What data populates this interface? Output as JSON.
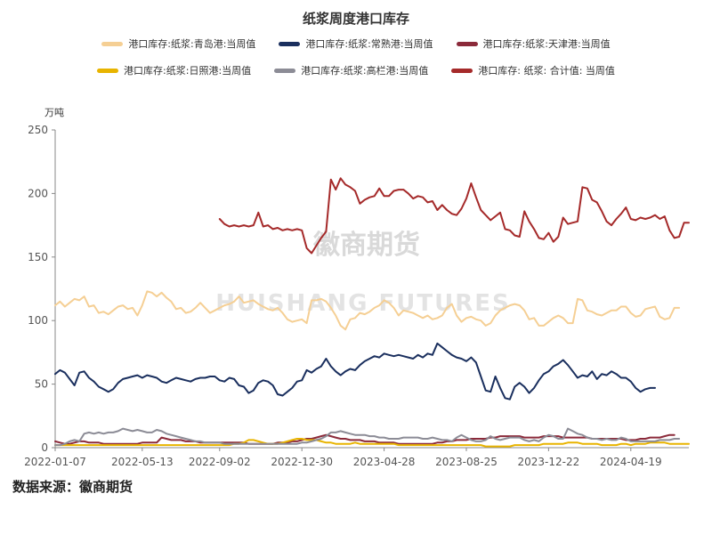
{
  "chart_data": {
    "type": "line",
    "title": "纸浆周度港口库存",
    "ylabel": "万吨",
    "ylim": [
      0,
      250
    ],
    "yticks": [
      0,
      50,
      100,
      150,
      200,
      250
    ],
    "xlim": [
      "2022-01-07",
      "2024-07-12"
    ],
    "xticks": [
      "2022-01-07",
      "2022-05-13",
      "2022-09-02",
      "2022-12-30",
      "2023-04-28",
      "2023-08-25",
      "2023-12-22",
      "2024-04-19"
    ],
    "watermark_cn": "徽商期货",
    "watermark_en": "HUISHANG FUTURES",
    "series": [
      {
        "name": "港口库存:纸浆:青岛港:当周值",
        "color": "#f5cf94",
        "values": [
          112,
          115,
          111,
          114,
          117,
          116,
          119,
          111,
          112,
          106,
          107,
          105,
          108,
          111,
          112,
          109,
          110,
          104,
          112,
          123,
          122,
          119,
          122,
          118,
          115,
          109,
          110,
          106,
          107,
          110,
          114,
          110,
          106,
          108,
          110,
          112,
          113,
          115,
          119,
          114,
          115,
          116,
          113,
          111,
          109,
          108,
          110,
          106,
          101,
          99,
          100,
          101,
          98,
          116,
          116,
          117,
          115,
          110,
          104,
          96,
          93,
          101,
          102,
          106,
          105,
          107,
          110,
          112,
          116,
          114,
          110,
          104,
          108,
          107,
          106,
          104,
          102,
          104,
          101,
          102,
          104,
          110,
          113,
          104,
          99,
          102,
          103,
          101,
          100,
          96,
          98,
          104,
          108,
          110,
          112,
          113,
          112,
          108,
          101,
          102,
          96,
          96,
          99,
          102,
          104,
          102,
          98,
          98,
          117,
          116,
          108,
          107,
          105,
          104,
          106,
          108,
          108,
          111,
          111,
          106,
          103,
          104,
          109,
          110,
          111,
          103,
          101,
          102,
          110,
          110
        ]
      },
      {
        "name": "港口库存:纸浆:常熟港:当周值",
        "color": "#1a2f5e",
        "values": [
          58,
          61,
          59,
          54,
          49,
          59,
          60,
          55,
          52,
          48,
          46,
          44,
          46,
          51,
          54,
          55,
          56,
          57,
          55,
          57,
          56,
          55,
          52,
          51,
          53,
          55,
          54,
          53,
          52,
          54,
          55,
          55,
          56,
          56,
          53,
          52,
          55,
          54,
          49,
          48,
          43,
          45,
          51,
          53,
          52,
          49,
          42,
          41,
          44,
          47,
          52,
          53,
          61,
          59,
          62,
          64,
          70,
          64,
          60,
          57,
          60,
          62,
          61,
          65,
          68,
          70,
          72,
          71,
          74,
          73,
          72,
          73,
          72,
          71,
          70,
          73,
          71,
          74,
          73,
          82,
          79,
          76,
          73,
          71,
          70,
          68,
          71,
          67,
          56,
          45,
          44,
          56,
          47,
          39,
          38,
          48,
          51,
          48,
          43,
          47,
          53,
          58,
          60,
          64,
          66,
          69,
          65,
          60,
          55,
          57,
          56,
          60,
          54,
          58,
          57,
          60,
          58,
          55,
          55,
          52,
          47,
          44,
          46,
          47,
          47
        ]
      },
      {
        "name": "港口库存:纸浆:天津港:当周值",
        "color": "#8b2a3a",
        "values": [
          5,
          4,
          3,
          3,
          4,
          5,
          5,
          4,
          4,
          4,
          3,
          3,
          3,
          3,
          3,
          3,
          3,
          3,
          4,
          4,
          4,
          4,
          8,
          7,
          6,
          6,
          6,
          5,
          5,
          5,
          4,
          4,
          4,
          4,
          4,
          4,
          4,
          4,
          4,
          4,
          3,
          3,
          3,
          3,
          3,
          3,
          4,
          4,
          4,
          5,
          5,
          6,
          7,
          7,
          8,
          9,
          10,
          9,
          8,
          7,
          7,
          6,
          6,
          6,
          5,
          5,
          5,
          4,
          4,
          4,
          4,
          3,
          3,
          3,
          3,
          3,
          3,
          3,
          3,
          4,
          4,
          5,
          5,
          6,
          6,
          6,
          7,
          7,
          7,
          7,
          8,
          8,
          9,
          9,
          9,
          9,
          9,
          8,
          8,
          8,
          8,
          9,
          9,
          9,
          9,
          8,
          8,
          8,
          8,
          8,
          8,
          7,
          7,
          7,
          7,
          7,
          7,
          7,
          6,
          6,
          6,
          7,
          7,
          8,
          8,
          8,
          9,
          10,
          10
        ]
      },
      {
        "name": "港口库存:纸浆:日照港:当周值",
        "color": "#e8b400",
        "values": [
          2,
          2,
          2,
          2,
          2,
          2,
          2,
          2,
          2,
          2,
          2,
          2,
          2,
          2,
          2,
          2,
          2,
          2,
          2,
          2,
          2,
          2,
          2,
          2,
          2,
          2,
          2,
          2,
          2,
          2,
          2,
          2,
          2,
          2,
          2,
          2,
          2,
          3,
          3,
          4,
          6,
          6,
          5,
          4,
          3,
          3,
          3,
          4,
          5,
          6,
          7,
          7,
          6,
          6,
          6,
          5,
          4,
          4,
          3,
          3,
          3,
          3,
          4,
          3,
          3,
          3,
          3,
          3,
          3,
          3,
          3,
          2,
          2,
          2,
          2,
          2,
          2,
          2,
          2,
          2,
          2,
          2,
          2,
          2,
          2,
          2,
          2,
          2,
          2,
          1,
          1,
          1,
          1,
          1,
          1,
          2,
          2,
          2,
          2,
          2,
          2,
          3,
          3,
          3,
          3,
          3,
          4,
          4,
          4,
          3,
          3,
          3,
          3,
          2,
          2,
          2,
          2,
          3,
          3,
          2,
          3,
          3,
          3,
          4,
          4,
          4,
          4,
          3,
          3,
          3,
          3,
          3
        ]
      },
      {
        "name": "港口库存:纸浆:高栏港:当周值",
        "color": "#8c8c96",
        "values": [
          2,
          2,
          3,
          5,
          6,
          5,
          11,
          12,
          11,
          12,
          11,
          12,
          12,
          13,
          15,
          14,
          13,
          14,
          13,
          12,
          12,
          14,
          13,
          11,
          10,
          9,
          8,
          7,
          6,
          5,
          5,
          4,
          4,
          4,
          4,
          3,
          3,
          3,
          3,
          3,
          3,
          3,
          3,
          3,
          3,
          3,
          3,
          3,
          3,
          3,
          3,
          4,
          4,
          5,
          6,
          7,
          9,
          12,
          12,
          13,
          12,
          11,
          10,
          10,
          10,
          9,
          9,
          8,
          8,
          7,
          7,
          7,
          8,
          8,
          8,
          8,
          7,
          7,
          8,
          7,
          6,
          6,
          5,
          8,
          10,
          8,
          6,
          5,
          5,
          6,
          9,
          7,
          6,
          7,
          8,
          8,
          8,
          6,
          5,
          6,
          5,
          8,
          10,
          9,
          7,
          7,
          15,
          13,
          11,
          10,
          8,
          7,
          7,
          6,
          7,
          6,
          6,
          8,
          7,
          5,
          5,
          5,
          5,
          5,
          5,
          6,
          6,
          6,
          7,
          7
        ]
      },
      {
        "name": "港口库存:纸浆:合计值:当周值",
        "color": "#a52a2a",
        "start": "2022-09-02",
        "values": [
          180,
          176,
          174,
          175,
          174,
          175,
          174,
          175,
          185,
          174,
          175,
          172,
          173,
          171,
          172,
          171,
          172,
          171,
          157,
          153,
          159,
          165,
          170,
          211,
          203,
          212,
          207,
          205,
          202,
          192,
          195,
          197,
          198,
          204,
          198,
          198,
          202,
          203,
          203,
          200,
          196,
          198,
          197,
          193,
          194,
          187,
          191,
          187,
          184,
          183,
          188,
          196,
          208,
          197,
          187,
          183,
          179,
          182,
          185,
          172,
          171,
          167,
          166,
          186,
          178,
          172,
          165,
          164,
          169,
          162,
          166,
          181,
          176,
          177,
          178,
          205,
          204,
          195,
          193,
          186,
          178,
          175,
          180,
          184,
          189,
          180,
          179,
          181,
          180,
          181,
          183,
          180,
          182,
          171,
          165,
          166,
          177,
          177
        ]
      }
    ]
  },
  "legend": {
    "row1": [
      "港口库存:纸浆:青岛港:当周值",
      "港口库存:纸浆:常熟港:当周值",
      "港口库存:纸浆:天津港:当周值"
    ],
    "row2": [
      "港口库存:纸浆:日照港:当周值",
      "港口库存:纸浆:高栏港:当周值",
      "港口库存: 纸浆: 合计值: 当周值"
    ]
  },
  "source": "数据来源：徽商期货"
}
